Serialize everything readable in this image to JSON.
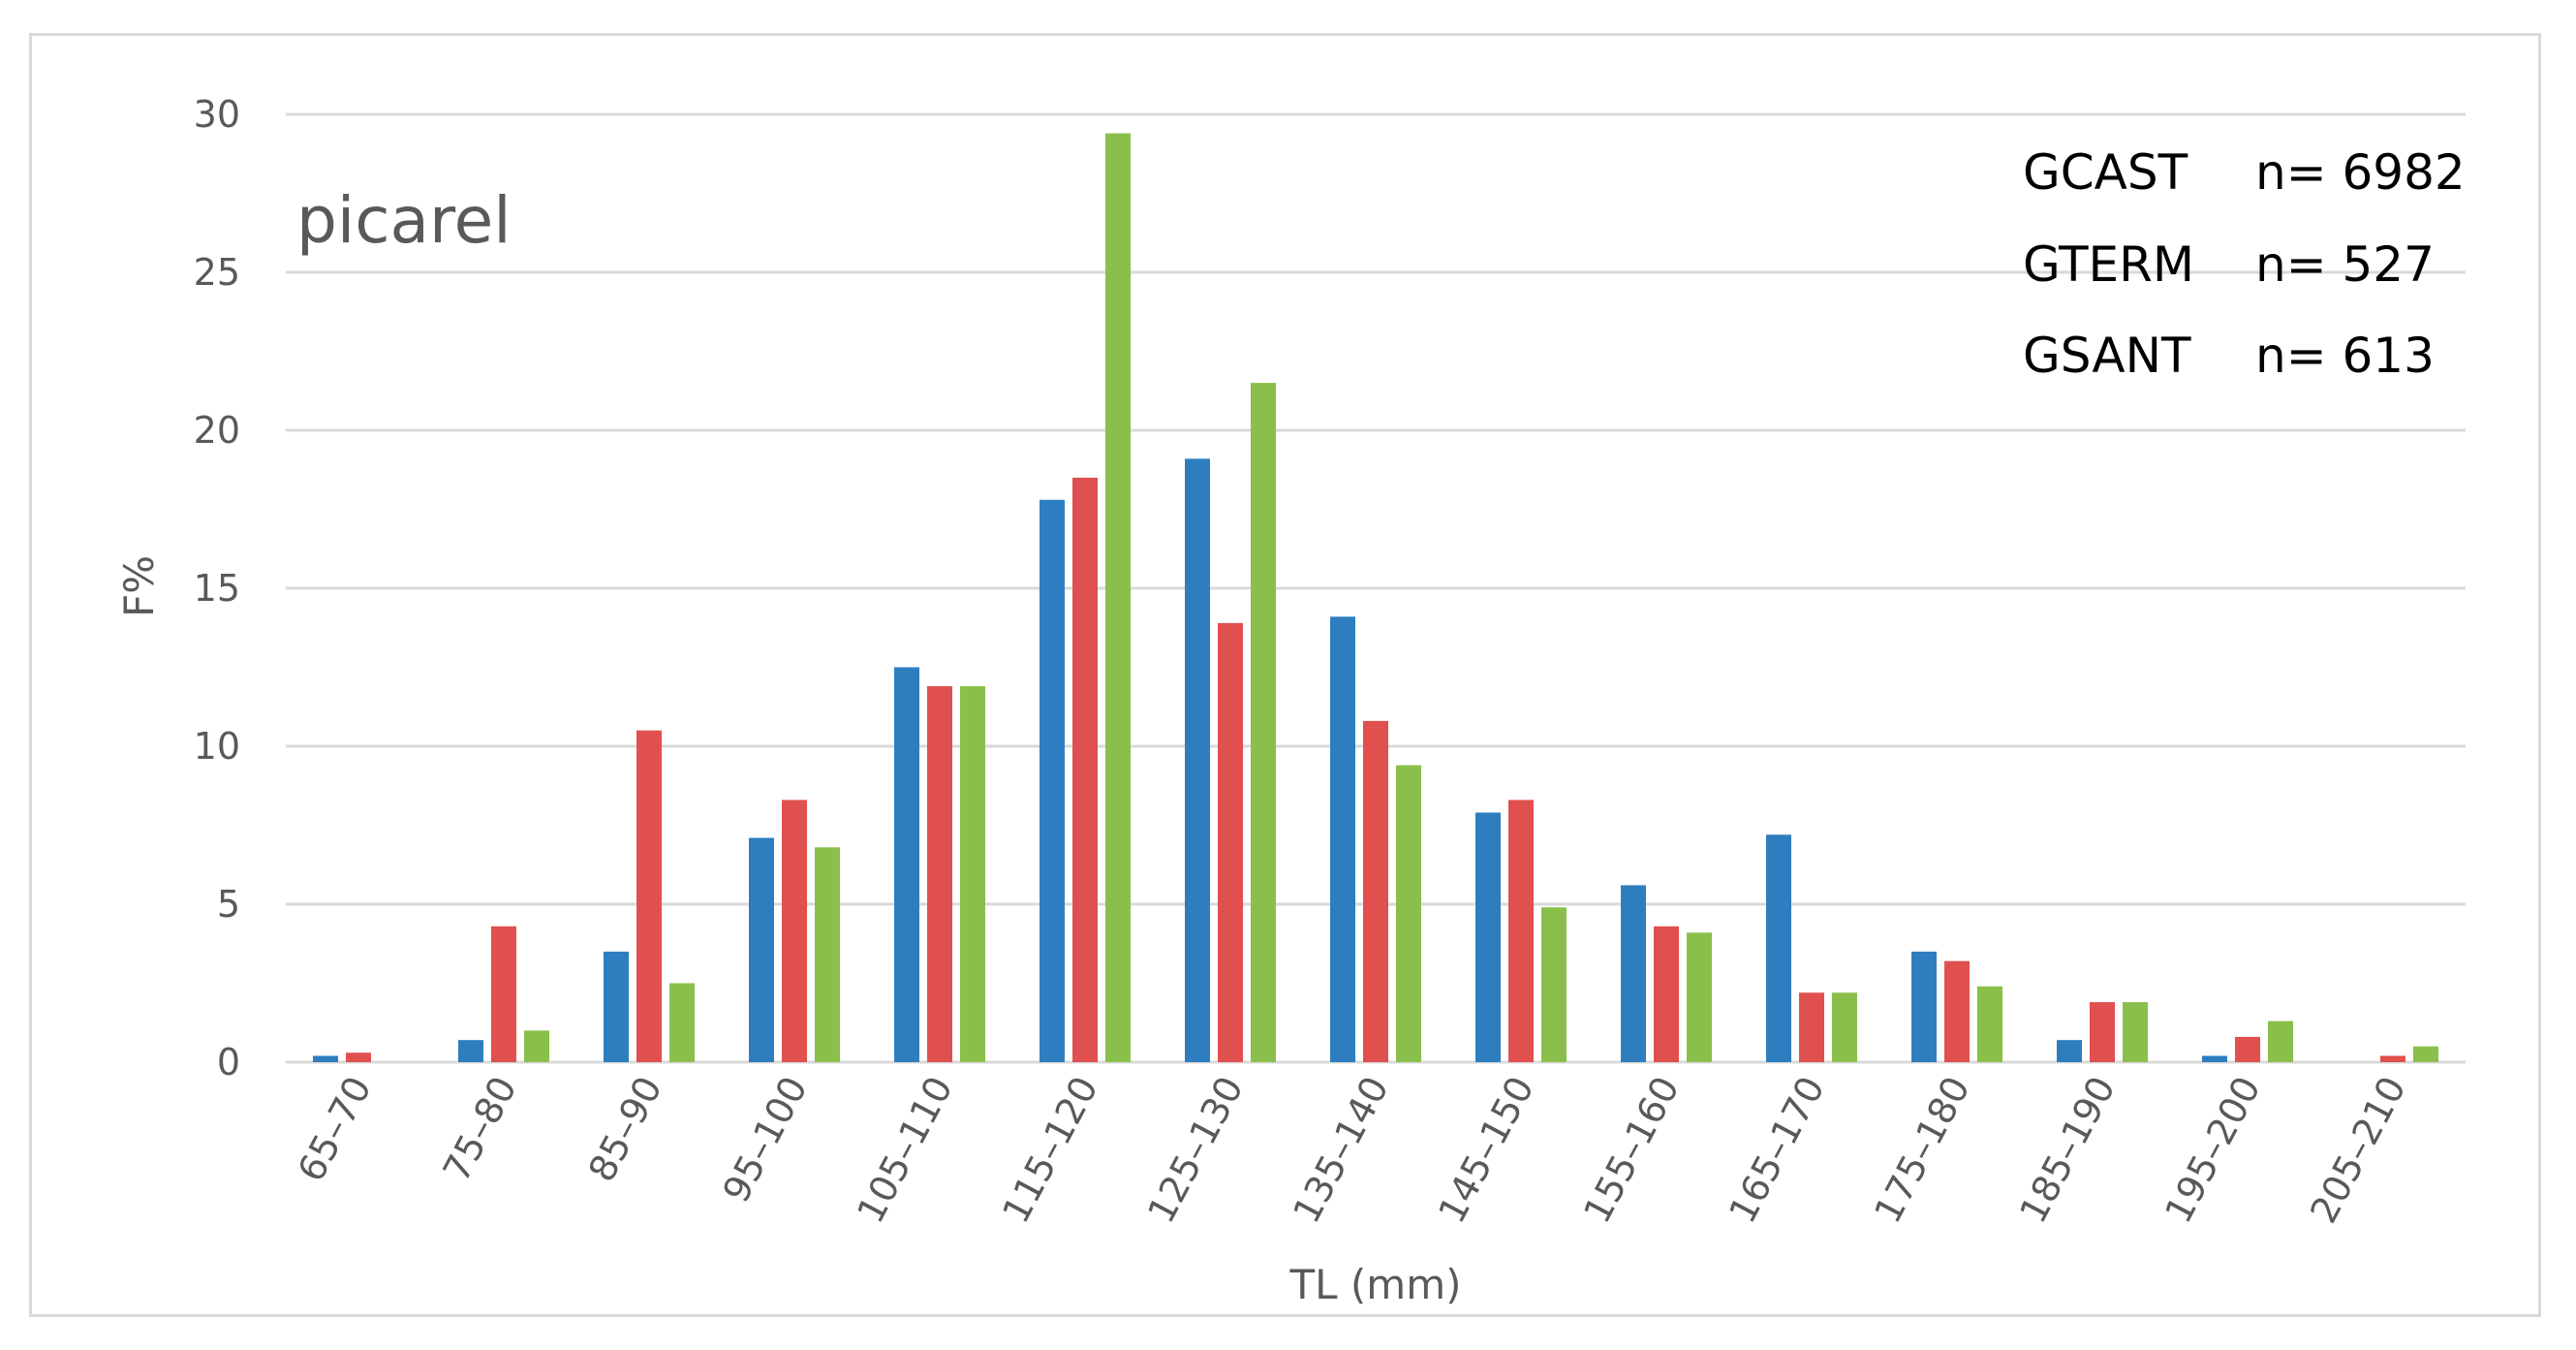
{
  "chart_data": {
    "type": "bar",
    "title": "",
    "annotation": "picarel",
    "xlabel": "TL (mm)",
    "ylabel": "F%",
    "ylim": [
      0,
      30
    ],
    "yticks": [
      "0",
      "5",
      "10",
      "15",
      "20",
      "25",
      "30"
    ],
    "grid": true,
    "legend_position": "top-right",
    "categories": [
      "65–70",
      "75–80",
      "85–90",
      "95–100",
      "105–110",
      "115–120",
      "125–130",
      "135–140",
      "145–150",
      "155–160",
      "165–170",
      "175–180",
      "185–190",
      "195–200",
      "205–210"
    ],
    "series": [
      {
        "name": "GCAST",
        "n_label": "n= 6982",
        "color": "#2e7ebf",
        "values": [
          0.2,
          0.7,
          3.5,
          7.1,
          12.5,
          17.8,
          19.1,
          14.1,
          7.9,
          5.6,
          7.2,
          3.5,
          0.7,
          0.2,
          0.0
        ]
      },
      {
        "name": "GTERM",
        "n_label": "n= 527",
        "color": "#e0504f",
        "values": [
          0.3,
          4.3,
          10.5,
          8.3,
          11.9,
          18.5,
          13.9,
          10.8,
          8.3,
          4.3,
          2.2,
          3.2,
          1.9,
          0.8,
          0.2
        ]
      },
      {
        "name": "GSANT",
        "n_label": "n= 613",
        "color": "#8bbf4b",
        "values": [
          0.0,
          1.0,
          2.5,
          6.8,
          11.9,
          29.4,
          21.5,
          9.4,
          4.9,
          4.1,
          2.2,
          2.4,
          1.9,
          1.3,
          0.5
        ]
      }
    ]
  }
}
